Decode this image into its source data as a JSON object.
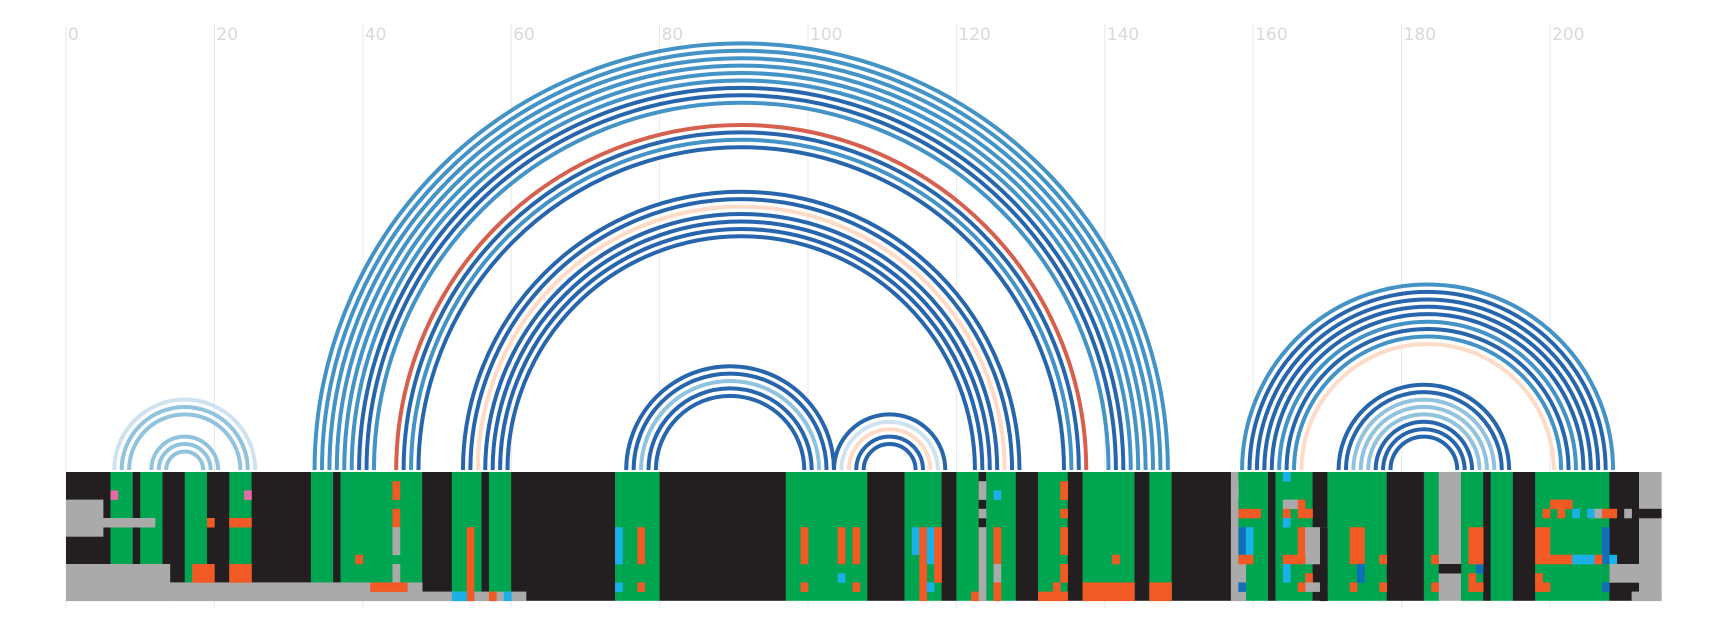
{
  "chart_data": {
    "type": "arc-diagram-alignment",
    "title": "",
    "xlabel": "",
    "ylabel": "",
    "x_axis": {
      "min": 0,
      "max": 217,
      "ticks": [
        0,
        20,
        40,
        60,
        80,
        100,
        120,
        140,
        160,
        180,
        200
      ]
    },
    "arc_colors": {
      "strong": "#2766ad",
      "medium": "#4493c6",
      "light": "#91c3df",
      "pale": "#cfe2f0",
      "red": "#d6604d",
      "peach": "#fddbc7"
    },
    "track_colors": {
      "dark": "#231f20",
      "green": "#00a64f",
      "gray": "#aaaaaa",
      "orange": "#f15a24",
      "cyan": "#1ab0e8",
      "blue": "#0f70b8",
      "pink": "#e46ca8"
    },
    "arcs": [
      {
        "i": 6,
        "j": 25,
        "c": "pale"
      },
      {
        "i": 7,
        "j": 24,
        "c": "light"
      },
      {
        "i": 8,
        "j": 23,
        "c": "light"
      },
      {
        "i": 11,
        "j": 20,
        "c": "light"
      },
      {
        "i": 12,
        "j": 19,
        "c": "light"
      },
      {
        "i": 13,
        "j": 18,
        "c": "light"
      },
      {
        "i": 33,
        "j": 148,
        "c": "medium"
      },
      {
        "i": 34,
        "j": 147,
        "c": "medium"
      },
      {
        "i": 35,
        "j": 146,
        "c": "medium"
      },
      {
        "i": 36,
        "j": 145,
        "c": "medium"
      },
      {
        "i": 37,
        "j": 144,
        "c": "medium"
      },
      {
        "i": 38,
        "j": 143,
        "c": "medium"
      },
      {
        "i": 39,
        "j": 142,
        "c": "strong"
      },
      {
        "i": 40,
        "j": 141,
        "c": "strong"
      },
      {
        "i": 41,
        "j": 140,
        "c": "medium"
      },
      {
        "i": 44,
        "j": 137,
        "c": "red"
      },
      {
        "i": 45,
        "j": 136,
        "c": "strong"
      },
      {
        "i": 46,
        "j": 135,
        "c": "medium"
      },
      {
        "i": 47,
        "j": 134,
        "c": "strong"
      },
      {
        "i": 53,
        "j": 128,
        "c": "strong"
      },
      {
        "i": 54,
        "j": 127,
        "c": "strong"
      },
      {
        "i": 55,
        "j": 126,
        "c": "peach"
      },
      {
        "i": 56,
        "j": 125,
        "c": "strong"
      },
      {
        "i": 57,
        "j": 124,
        "c": "strong"
      },
      {
        "i": 58,
        "j": 123,
        "c": "strong"
      },
      {
        "i": 59,
        "j": 122,
        "c": "strong"
      },
      {
        "i": 75,
        "j": 103,
        "c": "strong"
      },
      {
        "i": 76,
        "j": 102,
        "c": "strong"
      },
      {
        "i": 77,
        "j": 101,
        "c": "light"
      },
      {
        "i": 78,
        "j": 100,
        "c": "strong"
      },
      {
        "i": 79,
        "j": 99,
        "c": "strong"
      },
      {
        "i": 103,
        "j": 118,
        "c": "strong"
      },
      {
        "i": 104,
        "j": 117,
        "c": "pale"
      },
      {
        "i": 105,
        "j": 116,
        "c": "peach"
      },
      {
        "i": 106,
        "j": 115,
        "c": "strong"
      },
      {
        "i": 107,
        "j": 114,
        "c": "strong"
      },
      {
        "i": 158,
        "j": 208,
        "c": "medium"
      },
      {
        "i": 159,
        "j": 207,
        "c": "strong"
      },
      {
        "i": 160,
        "j": 206,
        "c": "strong"
      },
      {
        "i": 161,
        "j": 205,
        "c": "strong"
      },
      {
        "i": 162,
        "j": 204,
        "c": "strong"
      },
      {
        "i": 163,
        "j": 203,
        "c": "medium"
      },
      {
        "i": 164,
        "j": 202,
        "c": "strong"
      },
      {
        "i": 165,
        "j": 201,
        "c": "medium"
      },
      {
        "i": 166,
        "j": 200,
        "c": "peach"
      },
      {
        "i": 171,
        "j": 194,
        "c": "strong"
      },
      {
        "i": 172,
        "j": 193,
        "c": "strong"
      },
      {
        "i": 173,
        "j": 192,
        "c": "light"
      },
      {
        "i": 174,
        "j": 191,
        "c": "light"
      },
      {
        "i": 175,
        "j": 190,
        "c": "light"
      },
      {
        "i": 176,
        "j": 189,
        "c": "strong"
      },
      {
        "i": 177,
        "j": 188,
        "c": "strong"
      },
      {
        "i": 178,
        "j": 187,
        "c": "strong"
      }
    ],
    "columns": [
      {
        "from": 0,
        "to": 5,
        "c": "dark"
      },
      {
        "from": 6,
        "to": 8,
        "c": "green"
      },
      {
        "from": 9,
        "to": 9,
        "c": "dark"
      },
      {
        "from": 10,
        "to": 12,
        "c": "green"
      },
      {
        "from": 13,
        "to": 15,
        "c": "dark"
      },
      {
        "from": 16,
        "to": 18,
        "c": "green"
      },
      {
        "from": 19,
        "to": 21,
        "c": "dark"
      },
      {
        "from": 22,
        "to": 24,
        "c": "green"
      },
      {
        "from": 25,
        "to": 32,
        "c": "dark"
      },
      {
        "from": 33,
        "to": 35,
        "c": "green"
      },
      {
        "from": 36,
        "to": 36,
        "c": "dark"
      },
      {
        "from": 37,
        "to": 47,
        "c": "green"
      },
      {
        "from": 48,
        "to": 51,
        "c": "dark"
      },
      {
        "from": 52,
        "to": 55,
        "c": "green"
      },
      {
        "from": 56,
        "to": 56,
        "c": "dark"
      },
      {
        "from": 57,
        "to": 59,
        "c": "green"
      },
      {
        "from": 60,
        "to": 73,
        "c": "dark"
      },
      {
        "from": 74,
        "to": 79,
        "c": "green"
      },
      {
        "from": 80,
        "to": 96,
        "c": "dark"
      },
      {
        "from": 97,
        "to": 107,
        "c": "green"
      },
      {
        "from": 108,
        "to": 112,
        "c": "dark"
      },
      {
        "from": 113,
        "to": 117,
        "c": "green"
      },
      {
        "from": 118,
        "to": 119,
        "c": "dark"
      },
      {
        "from": 120,
        "to": 122,
        "c": "green"
      },
      {
        "from": 123,
        "to": 123,
        "c": "dark"
      },
      {
        "from": 124,
        "to": 127,
        "c": "green"
      },
      {
        "from": 128,
        "to": 130,
        "c": "dark"
      },
      {
        "from": 131,
        "to": 134,
        "c": "green"
      },
      {
        "from": 135,
        "to": 136,
        "c": "dark"
      },
      {
        "from": 137,
        "to": 143,
        "c": "green"
      },
      {
        "from": 144,
        "to": 145,
        "c": "dark"
      },
      {
        "from": 146,
        "to": 148,
        "c": "green"
      },
      {
        "from": 149,
        "to": 156,
        "c": "dark"
      },
      {
        "from": 157,
        "to": 157,
        "c": "gray"
      },
      {
        "from": 158,
        "to": 161,
        "c": "green"
      },
      {
        "from": 162,
        "to": 162,
        "c": "dark"
      },
      {
        "from": 163,
        "to": 167,
        "c": "green"
      },
      {
        "from": 168,
        "to": 169,
        "c": "dark"
      },
      {
        "from": 170,
        "to": 177,
        "c": "green"
      },
      {
        "from": 178,
        "to": 182,
        "c": "dark"
      },
      {
        "from": 183,
        "to": 184,
        "c": "green"
      },
      {
        "from": 185,
        "to": 187,
        "c": "gray"
      },
      {
        "from": 188,
        "to": 190,
        "c": "green"
      },
      {
        "from": 191,
        "to": 191,
        "c": "dark"
      },
      {
        "from": 192,
        "to": 194,
        "c": "green"
      },
      {
        "from": 195,
        "to": 197,
        "c": "dark"
      },
      {
        "from": 198,
        "to": 207,
        "c": "green"
      },
      {
        "from": 208,
        "to": 211,
        "c": "dark"
      },
      {
        "from": 212,
        "to": 214,
        "c": "gray"
      }
    ],
    "cells": [
      {
        "x": 0,
        "w": 5,
        "y": 3,
        "h": 4,
        "c": "gray"
      },
      {
        "x": 0,
        "w": 12,
        "y": 5,
        "h": 1,
        "c": "gray"
      },
      {
        "x": 0,
        "w": 14,
        "y": 10,
        "h": 4,
        "c": "gray"
      },
      {
        "x": 14,
        "w": 34,
        "y": 12,
        "h": 1,
        "c": "gray"
      },
      {
        "x": 14,
        "w": 48,
        "y": 13,
        "h": 1,
        "c": "gray"
      },
      {
        "x": 6,
        "w": 1,
        "y": 2,
        "h": 1,
        "c": "pink"
      },
      {
        "x": 24,
        "w": 1,
        "y": 2,
        "h": 1,
        "c": "pink"
      },
      {
        "x": 19,
        "w": 1,
        "y": 5,
        "h": 1,
        "c": "orange"
      },
      {
        "x": 22,
        "w": 3,
        "y": 5,
        "h": 1,
        "c": "orange"
      },
      {
        "x": 17,
        "w": 3,
        "y": 10,
        "h": 2,
        "c": "orange"
      },
      {
        "x": 22,
        "w": 3,
        "y": 10,
        "h": 2,
        "c": "orange"
      },
      {
        "x": 44,
        "w": 1,
        "y": 1,
        "h": 2,
        "c": "orange"
      },
      {
        "x": 44,
        "w": 1,
        "y": 4,
        "h": 2,
        "c": "orange"
      },
      {
        "x": 44,
        "w": 1,
        "y": 6,
        "h": 3,
        "c": "gray"
      },
      {
        "x": 44,
        "w": 1,
        "y": 10,
        "h": 2,
        "c": "gray"
      },
      {
        "x": 39,
        "w": 1,
        "y": 9,
        "h": 1,
        "c": "orange"
      },
      {
        "x": 41,
        "w": 5,
        "y": 12,
        "h": 1,
        "c": "orange"
      },
      {
        "x": 54,
        "w": 1,
        "y": 6,
        "h": 8,
        "c": "orange"
      },
      {
        "x": 52,
        "w": 2,
        "y": 13,
        "h": 1,
        "c": "cyan"
      },
      {
        "x": 57,
        "w": 1,
        "y": 13,
        "h": 1,
        "c": "orange"
      },
      {
        "x": 59,
        "w": 1,
        "y": 13,
        "h": 1,
        "c": "cyan"
      },
      {
        "x": 74,
        "w": 1,
        "y": 6,
        "h": 4,
        "c": "cyan"
      },
      {
        "x": 77,
        "w": 1,
        "y": 6,
        "h": 4,
        "c": "orange"
      },
      {
        "x": 74,
        "w": 1,
        "y": 12,
        "h": 1,
        "c": "cyan"
      },
      {
        "x": 77,
        "w": 1,
        "y": 12,
        "h": 1,
        "c": "orange"
      },
      {
        "x": 99,
        "w": 1,
        "y": 6,
        "h": 4,
        "c": "orange"
      },
      {
        "x": 104,
        "w": 1,
        "y": 6,
        "h": 4,
        "c": "orange"
      },
      {
        "x": 106,
        "w": 1,
        "y": 6,
        "h": 4,
        "c": "orange"
      },
      {
        "x": 99,
        "w": 1,
        "y": 12,
        "h": 1,
        "c": "orange"
      },
      {
        "x": 104,
        "w": 1,
        "y": 11,
        "h": 1,
        "c": "cyan"
      },
      {
        "x": 106,
        "w": 1,
        "y": 12,
        "h": 1,
        "c": "orange"
      },
      {
        "x": 114,
        "w": 1,
        "y": 6,
        "h": 3,
        "c": "cyan"
      },
      {
        "x": 115,
        "w": 1,
        "y": 6,
        "h": 8,
        "c": "orange"
      },
      {
        "x": 116,
        "w": 1,
        "y": 6,
        "h": 4,
        "c": "cyan"
      },
      {
        "x": 117,
        "w": 1,
        "y": 6,
        "h": 6,
        "c": "orange"
      },
      {
        "x": 116,
        "w": 1,
        "y": 12,
        "h": 1,
        "c": "cyan"
      },
      {
        "x": 122,
        "w": 1,
        "y": 13,
        "h": 1,
        "c": "orange"
      },
      {
        "x": 123,
        "w": 1,
        "y": 1,
        "h": 2,
        "c": "gray"
      },
      {
        "x": 123,
        "w": 1,
        "y": 4,
        "h": 1,
        "c": "gray"
      },
      {
        "x": 123,
        "w": 1,
        "y": 6,
        "h": 8,
        "c": "gray"
      },
      {
        "x": 125,
        "w": 1,
        "y": 2,
        "h": 1,
        "c": "cyan"
      },
      {
        "x": 125,
        "w": 1,
        "y": 6,
        "h": 4,
        "c": "orange"
      },
      {
        "x": 125,
        "w": 1,
        "y": 10,
        "h": 2,
        "c": "gray"
      },
      {
        "x": 125,
        "w": 1,
        "y": 12,
        "h": 2,
        "c": "orange"
      },
      {
        "x": 134,
        "w": 1,
        "y": 1,
        "h": 2,
        "c": "orange"
      },
      {
        "x": 134,
        "w": 1,
        "y": 4,
        "h": 1,
        "c": "orange"
      },
      {
        "x": 134,
        "w": 1,
        "y": 6,
        "h": 3,
        "c": "orange"
      },
      {
        "x": 134,
        "w": 1,
        "y": 10,
        "h": 2,
        "c": "orange"
      },
      {
        "x": 133,
        "w": 1,
        "y": 12,
        "h": 1,
        "c": "orange"
      },
      {
        "x": 131,
        "w": 4,
        "y": 13,
        "h": 1,
        "c": "orange"
      },
      {
        "x": 141,
        "w": 1,
        "y": 9,
        "h": 1,
        "c": "orange"
      },
      {
        "x": 137,
        "w": 7,
        "y": 12,
        "h": 2,
        "c": "orange"
      },
      {
        "x": 146,
        "w": 3,
        "y": 12,
        "h": 2,
        "c": "orange"
      },
      {
        "x": 157,
        "w": 1,
        "y": 1,
        "h": 2,
        "c": "gray"
      },
      {
        "x": 157,
        "w": 1,
        "y": 4,
        "h": 1,
        "c": "gray"
      },
      {
        "x": 157,
        "w": 2,
        "y": 6,
        "h": 8,
        "c": "gray"
      },
      {
        "x": 158,
        "w": 3,
        "y": 4,
        "h": 1,
        "c": "orange"
      },
      {
        "x": 158,
        "w": 1,
        "y": 6,
        "h": 3,
        "c": "blue"
      },
      {
        "x": 159,
        "w": 1,
        "y": 6,
        "h": 3,
        "c": "cyan"
      },
      {
        "x": 158,
        "w": 2,
        "y": 9,
        "h": 1,
        "c": "orange"
      },
      {
        "x": 158,
        "w": 1,
        "y": 12,
        "h": 1,
        "c": "blue"
      },
      {
        "x": 164,
        "w": 1,
        "y": 0,
        "h": 1,
        "c": "cyan"
      },
      {
        "x": 164,
        "w": 2,
        "y": 3,
        "h": 1,
        "c": "gray"
      },
      {
        "x": 166,
        "w": 1,
        "y": 3,
        "h": 1,
        "c": "orange"
      },
      {
        "x": 164,
        "w": 1,
        "y": 4,
        "h": 1,
        "c": "orange"
      },
      {
        "x": 166,
        "w": 1,
        "y": 4,
        "h": 1,
        "c": "orange"
      },
      {
        "x": 167,
        "w": 1,
        "y": 4,
        "h": 1,
        "c": "orange"
      },
      {
        "x": 164,
        "w": 1,
        "y": 5,
        "h": 1,
        "c": "cyan"
      },
      {
        "x": 166,
        "w": 1,
        "y": 6,
        "h": 3,
        "c": "orange"
      },
      {
        "x": 167,
        "w": 3,
        "y": 6,
        "h": 4,
        "c": "gray"
      },
      {
        "x": 164,
        "w": 3,
        "y": 9,
        "h": 1,
        "c": "orange"
      },
      {
        "x": 164,
        "w": 1,
        "y": 10,
        "h": 2,
        "c": "cyan"
      },
      {
        "x": 167,
        "w": 1,
        "y": 11,
        "h": 1,
        "c": "orange"
      },
      {
        "x": 167,
        "w": 3,
        "y": 12,
        "h": 1,
        "c": "gray"
      },
      {
        "x": 166,
        "w": 1,
        "y": 12,
        "h": 1,
        "c": "orange"
      },
      {
        "x": 169,
        "w": 1,
        "y": 6,
        "h": 8,
        "c": "dark"
      },
      {
        "x": 173,
        "w": 2,
        "y": 6,
        "h": 4,
        "c": "orange"
      },
      {
        "x": 177,
        "w": 1,
        "y": 9,
        "h": 1,
        "c": "orange"
      },
      {
        "x": 173,
        "w": 1,
        "y": 12,
        "h": 1,
        "c": "orange"
      },
      {
        "x": 174,
        "w": 1,
        "y": 10,
        "h": 2,
        "c": "blue"
      },
      {
        "x": 177,
        "w": 1,
        "y": 12,
        "h": 1,
        "c": "orange"
      },
      {
        "x": 184,
        "w": 1,
        "y": 9,
        "h": 1,
        "c": "orange"
      },
      {
        "x": 184,
        "w": 1,
        "y": 12,
        "h": 1,
        "c": "orange"
      },
      {
        "x": 185,
        "w": 3,
        "y": 10,
        "h": 1,
        "c": "dark"
      },
      {
        "x": 190,
        "w": 1,
        "y": 10,
        "h": 1,
        "c": "blue"
      },
      {
        "x": 189,
        "w": 2,
        "y": 6,
        "h": 4,
        "c": "orange"
      },
      {
        "x": 189,
        "w": 1,
        "y": 11,
        "h": 1,
        "c": "orange"
      },
      {
        "x": 189,
        "w": 2,
        "y": 12,
        "h": 1,
        "c": "orange"
      },
      {
        "x": 200,
        "w": 3,
        "y": 3,
        "h": 1,
        "c": "orange"
      },
      {
        "x": 199,
        "w": 1,
        "y": 4,
        "h": 1,
        "c": "orange"
      },
      {
        "x": 201,
        "w": 1,
        "y": 4,
        "h": 1,
        "c": "orange"
      },
      {
        "x": 203,
        "w": 1,
        "y": 4,
        "h": 1,
        "c": "cyan"
      },
      {
        "x": 205,
        "w": 1,
        "y": 4,
        "h": 1,
        "c": "cyan"
      },
      {
        "x": 206,
        "w": 1,
        "y": 4,
        "h": 1,
        "c": "gray"
      },
      {
        "x": 207,
        "w": 2,
        "y": 4,
        "h": 1,
        "c": "orange"
      },
      {
        "x": 198,
        "w": 2,
        "y": 6,
        "h": 4,
        "c": "orange"
      },
      {
        "x": 207,
        "w": 1,
        "y": 6,
        "h": 4,
        "c": "blue"
      },
      {
        "x": 200,
        "w": 3,
        "y": 9,
        "h": 1,
        "c": "orange"
      },
      {
        "x": 203,
        "w": 3,
        "y": 9,
        "h": 1,
        "c": "cyan"
      },
      {
        "x": 206,
        "w": 1,
        "y": 9,
        "h": 1,
        "c": "orange"
      },
      {
        "x": 208,
        "w": 1,
        "y": 9,
        "h": 1,
        "c": "cyan"
      },
      {
        "x": 198,
        "w": 1,
        "y": 11,
        "h": 1,
        "c": "orange"
      },
      {
        "x": 198,
        "w": 2,
        "y": 12,
        "h": 1,
        "c": "orange"
      },
      {
        "x": 207,
        "w": 1,
        "y": 12,
        "h": 1,
        "c": "blue"
      },
      {
        "x": 210,
        "w": 1,
        "y": 4,
        "h": 1,
        "c": "gray"
      },
      {
        "x": 212,
        "w": 3,
        "y": 4,
        "h": 1,
        "c": "dark"
      },
      {
        "x": 208,
        "w": 4,
        "y": 10,
        "h": 2,
        "c": "gray"
      },
      {
        "x": 211,
        "w": 4,
        "y": 13,
        "h": 1,
        "c": "gray"
      }
    ]
  }
}
